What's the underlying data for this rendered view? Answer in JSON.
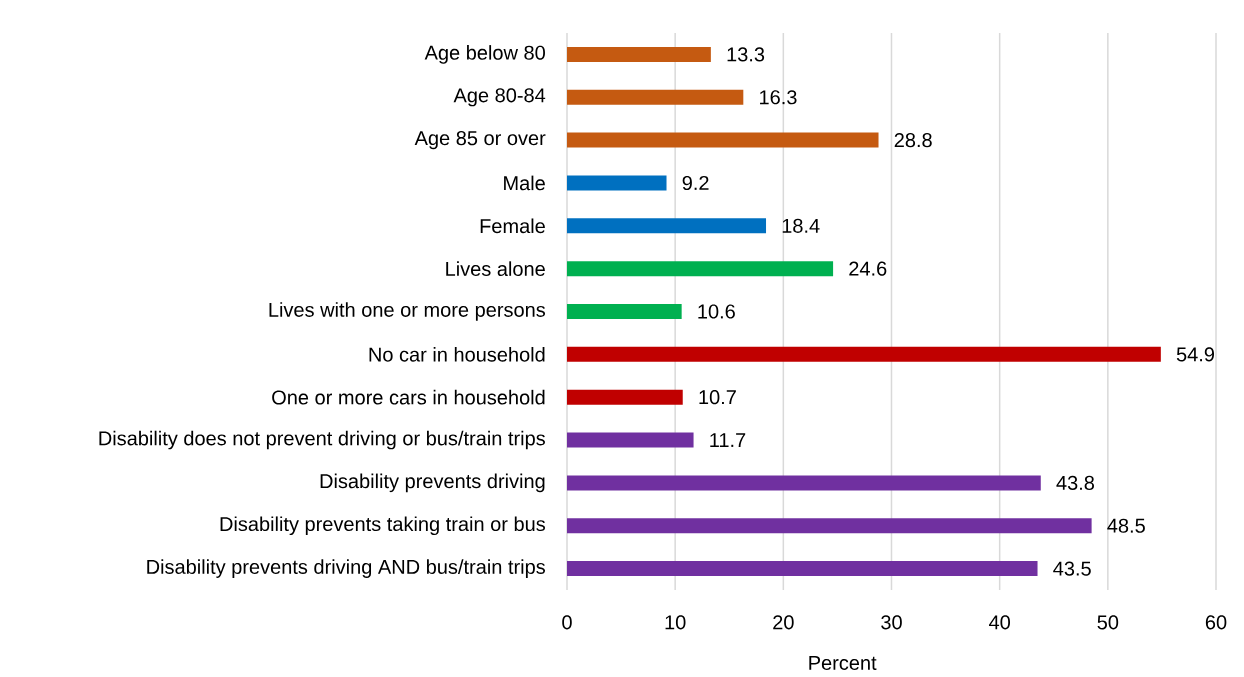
{
  "chart_data": {
    "type": "bar",
    "orientation": "horizontal",
    "xlabel": "Percent",
    "categories": [
      "Age below 80",
      "Age 80-84",
      "Age 85 or over",
      "Male",
      "Female",
      "Lives alone",
      "Lives with one or more persons",
      "No car in household",
      "One or more cars in household",
      "Disability does not prevent driving or bus/train trips",
      "Disability prevents driving",
      "Disability prevents taking train or bus",
      "Disability prevents driving AND bus/train trips"
    ],
    "values": [
      13.3,
      16.3,
      28.8,
      9.2,
      18.4,
      24.6,
      10.6,
      54.9,
      10.7,
      11.7,
      43.8,
      48.5,
      43.5
    ],
    "colors": [
      "#c55a11",
      "#c55a11",
      "#c55a11",
      "#0070c0",
      "#0070c0",
      "#00b050",
      "#00b050",
      "#c00000",
      "#c00000",
      "#7030a0",
      "#7030a0",
      "#7030a0",
      "#7030a0"
    ],
    "xlim": [
      0,
      60
    ],
    "xticks": [
      0,
      10,
      20,
      30,
      40,
      50,
      60
    ],
    "grid": "x",
    "data_labels": true
  }
}
